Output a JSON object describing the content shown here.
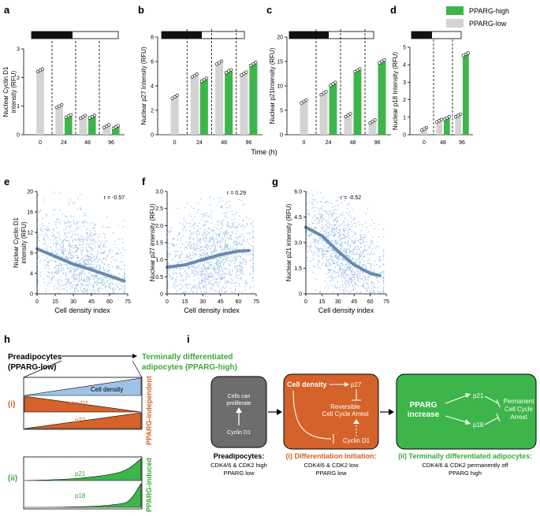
{
  "colors": {
    "gray": "#d3d3d3",
    "green": "#3db54a",
    "orange": "#d4622a",
    "blue": "#9fc3e8",
    "darkbox": "#6d6d6d",
    "trend": "#5a7fa6",
    "pparg_green": "#3aaa35"
  },
  "legend": {
    "high": "PPARG-high",
    "low": "PPARG-low"
  },
  "time_label": "Time (h)",
  "panel_labels": {
    "a": "a",
    "b": "b",
    "c": "c",
    "d": "d",
    "e": "e",
    "f": "f",
    "g": "g",
    "h": "h",
    "i": "i"
  },
  "chart_data": [
    {
      "panel": "a",
      "type": "bar",
      "ylabel": [
        "Nuclear Cyclin D1",
        "intensity (RFU)"
      ],
      "ylim": [
        0,
        3
      ],
      "yticks": [
        "0",
        "1",
        "2",
        "3"
      ],
      "categories": [
        "0",
        "24",
        "48",
        "96"
      ],
      "series": [
        {
          "name": "PPARG-low",
          "values": [
            2.25,
            1.0,
            0.62,
            0.3
          ]
        },
        {
          "name": "PPARG-high",
          "values": [
            null,
            0.65,
            0.63,
            0.27
          ]
        }
      ]
    },
    {
      "panel": "b",
      "type": "bar",
      "ylabel": [
        "Nuclear p27 Intensity (RFU)"
      ],
      "ylim": [
        0,
        8
      ],
      "yticks": [
        "0",
        "2",
        "4",
        "6",
        "8"
      ],
      "categories": [
        "0",
        "24",
        "48",
        "96"
      ],
      "series": [
        {
          "name": "PPARG-low",
          "values": [
            3.1,
            4.85,
            5.9,
            5.0
          ]
        },
        {
          "name": "PPARG-high",
          "values": [
            null,
            4.5,
            5.2,
            5.8
          ]
        }
      ]
    },
    {
      "panel": "c",
      "type": "bar",
      "ylabel": [
        "Nuclear p21Intensity (RFU)"
      ],
      "ylim": [
        0,
        20
      ],
      "yticks": [
        "0",
        "5",
        "10",
        "15",
        "20"
      ],
      "categories": [
        "0",
        "24",
        "48",
        "96"
      ],
      "series": [
        {
          "name": "PPARG-low",
          "values": [
            6.8,
            8.5,
            4.0,
            2.7
          ]
        },
        {
          "name": "PPARG-high",
          "values": [
            null,
            10.4,
            13.2,
            15.0
          ]
        }
      ]
    },
    {
      "panel": "d",
      "type": "bar",
      "ylabel": [
        "Nuclear p18 Intensity (RFU)"
      ],
      "ylim": [
        0,
        5
      ],
      "yticks": [
        "0",
        "1",
        "2",
        "3",
        "4",
        "5"
      ],
      "categories": [
        "0",
        "48",
        "96"
      ],
      "series": [
        {
          "name": "PPARG-low",
          "values": [
            0.33,
            0.8,
            1.1
          ]
        },
        {
          "name": "PPARG-high",
          "values": [
            null,
            0.95,
            4.6
          ]
        }
      ]
    },
    {
      "panel": "e",
      "type": "scatter",
      "ylabel": [
        "Nuclear Cyclin D1",
        "intensity (RFU)"
      ],
      "xlabel": "Cell density index",
      "r": "r = -0.57",
      "xlim": [
        0,
        75
      ],
      "ylim": [
        0,
        20
      ],
      "xticks": [
        "0",
        "15",
        "30",
        "45",
        "60",
        "75"
      ],
      "yticks": [
        "0",
        "4",
        "8",
        "12",
        "16",
        "20"
      ],
      "trend": {
        "x": [
          0,
          15,
          30,
          45,
          60,
          72
        ],
        "y": [
          8.8,
          7.3,
          5.8,
          4.7,
          3.5,
          2.5
        ]
      }
    },
    {
      "panel": "f",
      "type": "scatter",
      "ylabel": [
        "Nuclear p27 intensity (RFU)"
      ],
      "xlabel": "Cell density index",
      "r": "r = 0.29",
      "xlim": [
        0,
        75
      ],
      "ylim": [
        0,
        3
      ],
      "xticks": [
        "0",
        "15",
        "30",
        "45",
        "60",
        "75"
      ],
      "yticks": [
        "0",
        "0.5",
        "1.0",
        "1.5",
        "2.0",
        "2.5",
        "3.0"
      ],
      "trend": {
        "x": [
          0,
          15,
          30,
          45,
          60,
          70
        ],
        "y": [
          0.78,
          0.85,
          1.0,
          1.15,
          1.25,
          1.27
        ]
      }
    },
    {
      "panel": "g",
      "type": "scatter",
      "ylabel": [
        "Nuclear p21 intensity (RFU)"
      ],
      "xlabel": "Cell density index",
      "r": "r = -0.52",
      "xlim": [
        0,
        75
      ],
      "ylim": [
        0,
        6
      ],
      "xticks": [
        "0",
        "15",
        "30",
        "45",
        "60",
        "75"
      ],
      "yticks": [
        "0",
        "1.5",
        "3.0",
        "4.5",
        "6.0"
      ],
      "trend": {
        "x": [
          0,
          15,
          30,
          45,
          60,
          70
        ],
        "y": [
          3.9,
          3.4,
          2.5,
          1.7,
          1.2,
          1.05
        ]
      }
    }
  ],
  "panel_h": {
    "preadipocytes": [
      "Preadipocytes",
      "(PPARG-low)"
    ],
    "terminal": [
      "Terminally differentiated",
      "adipocytes (PPARG-high)"
    ],
    "roman_i": "(i)",
    "roman_ii": "(ii)",
    "cell_density": "Cell density",
    "cyclin_d1": "Cyclin D1",
    "p27": "p27",
    "p21": "p21",
    "p18": "p18",
    "pparg_independent": "PPARG-independent",
    "pparg_induced": "PPARG-induced"
  },
  "panel_i": {
    "box1_text": [
      "Cells can",
      "proliferate"
    ],
    "box1_cyclin": "Cyclin D1",
    "box1_title": "Preadipocytes:",
    "box1_sub": [
      "CDK4/6 & CDK2 high",
      "PPARG low"
    ],
    "box2_density": "Cell density",
    "box2_p27": "p27",
    "box2_arrest": [
      "Reversible",
      "Cell Cycle Arrest"
    ],
    "box2_cyclin": "Cyclin D1",
    "box2_title": "(i) Differentiation Initiation:",
    "box2_sub": [
      "CDK4/6 & CDK2 low",
      "PPARG low"
    ],
    "box3_pparg": [
      "PPARG",
      "increase"
    ],
    "box3_p21": "p21",
    "box3_p18": "p18",
    "box3_arrest": [
      "Permanent",
      "Cell Cycle",
      "Arrest"
    ],
    "box3_title": "(ii) Terminally differentiated adipocytes:",
    "box3_sub": [
      "CDK4/6 & CDK2 permanently off",
      "PPARG high"
    ]
  }
}
